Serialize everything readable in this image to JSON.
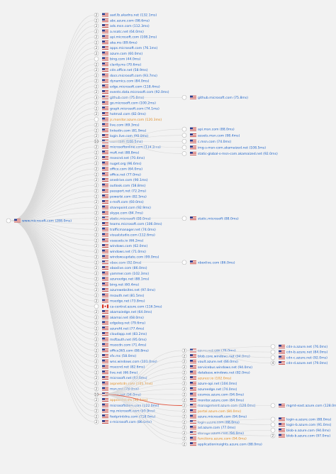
{
  "colors": {
    "background": "#f2f2f2",
    "edge": "#d8d8d8",
    "highlight_edge": "#e0533d",
    "link": "#1d63c9",
    "text": "#222222",
    "orange": "#e08a1e"
  },
  "root": {
    "label": "www.microsoft.com (288.0ms)",
    "flag": "us"
  },
  "children": [
    {
      "count": "2",
      "label": "aad.lb.akadns.net (132.1ms)",
      "flag": "us"
    },
    {
      "count": "2",
      "label": "abc.azure.com (98.6ms)",
      "flag": "us"
    },
    {
      "count": "2",
      "label": "ads.msn.com (112.3ms)",
      "flag": "us"
    },
    {
      "count": "2",
      "label": "a.nsatc.net (64.0ms)",
      "flag": "us"
    },
    {
      "count": "2",
      "label": "api.microsoft.com (108.2ms)",
      "flag": "us"
    },
    {
      "count": "2",
      "label": "aka.ms (89.6ms)",
      "flag": "us"
    },
    {
      "count": "2",
      "label": "apps.microsoft.com (76.1ms)",
      "flag": "us"
    },
    {
      "count": "2",
      "label": "azure.com (60.0ms)",
      "flag": "us"
    },
    {
      "count": "",
      "label": "bing.com (44.0ms)",
      "flag": "us"
    },
    {
      "count": "2",
      "label": "clarity.ms (70.6ms)",
      "flag": "us"
    },
    {
      "count": "2",
      "label": "cdn.office.net (58.9ms)",
      "flag": "us"
    },
    {
      "count": "2",
      "label": "docs.microsoft.com (93.7ms)",
      "flag": "us"
    },
    {
      "count": "2",
      "label": "dynamics.com (84.0ms)",
      "flag": "us"
    },
    {
      "count": "2",
      "label": "edge.microsoft.com (118.4ms)",
      "flag": "us"
    },
    {
      "count": "2",
      "label": "events.data.microsoft.com (92.0ms)",
      "flag": "us"
    },
    {
      "count": "3",
      "label": "github.com (75.8ms)",
      "flag": "us"
    },
    {
      "count": "2",
      "label": "go.microsoft.com (100.2ms)",
      "flag": "us"
    },
    {
      "count": "2",
      "label": "graph.microsoft.com (74.1ms)",
      "flag": "us"
    },
    {
      "count": "2",
      "label": "hotmail.com (82.0ms)",
      "flag": "us"
    },
    {
      "count": "",
      "label": "js.monitor.azure.com (120.3ms)",
      "flag": "us",
      "color": "orange"
    },
    {
      "count": "2",
      "label": "live.com (69.3ms)",
      "flag": "us"
    },
    {
      "count": "2",
      "label": "linkedin.com (81.9ms)",
      "flag": "us"
    },
    {
      "count": "2",
      "label": "login.live.com (98.0ms)",
      "flag": "us"
    },
    {
      "count": "10",
      "label": "msn.com (108.5ms)",
      "flag": "us"
    },
    {
      "count": "2",
      "label": "microsoftonline.com (114.2ms)",
      "flag": "us"
    },
    {
      "count": "2",
      "label": "msft.net (88.8ms)",
      "flag": "us"
    },
    {
      "count": "2",
      "label": "msecnd.net (70.4ms)",
      "flag": "us"
    },
    {
      "count": "2",
      "label": "nuget.org (96.6ms)",
      "flag": "us"
    },
    {
      "count": "2",
      "label": "office.com (64.0ms)",
      "flag": "us"
    },
    {
      "count": "2",
      "label": "office.net (77.0ms)",
      "flag": "us"
    },
    {
      "count": "2",
      "label": "onedrive.com (90.1ms)",
      "flag": "us"
    },
    {
      "count": "2",
      "label": "outlook.com (58.8ms)",
      "flag": "us"
    },
    {
      "count": "2",
      "label": "passport.net (72.2ms)",
      "flag": "us"
    },
    {
      "count": "2",
      "label": "powerbi.com (82.5ms)",
      "flag": "us"
    },
    {
      "count": "2",
      "label": "s-msft.com (60.0ms)",
      "flag": "us"
    },
    {
      "count": "2",
      "label": "sharepoint.com (92.9ms)",
      "flag": "us"
    },
    {
      "count": "2",
      "label": "skype.com (84.7ms)",
      "flag": "us"
    },
    {
      "count": "2",
      "label": "static.microsoft (88.0ms)",
      "flag": "us"
    },
    {
      "count": "2",
      "label": "teams.microsoft.com (106.0ms)",
      "flag": "us"
    },
    {
      "count": "2",
      "label": "trafficmanager.net (74.0ms)",
      "flag": "us"
    },
    {
      "count": "2",
      "label": "visualstudio.com (112.6ms)",
      "flag": "us"
    },
    {
      "count": "2",
      "label": "vsassets.io (66.2ms)",
      "flag": "us"
    },
    {
      "count": "2",
      "label": "windows.com (62.0ms)",
      "flag": "us"
    },
    {
      "count": "2",
      "label": "windows.net (71.0ms)",
      "flag": "us"
    },
    {
      "count": "2",
      "label": "windowsupdate.com (99.0ms)",
      "flag": "us"
    },
    {
      "count": "2",
      "label": "xbox.com (92.8ms)",
      "flag": "us"
    },
    {
      "count": "2",
      "label": "xboxlive.com (86.0ms)",
      "flag": "us"
    },
    {
      "count": "2",
      "label": "yammer.com (102.3ms)",
      "flag": "us"
    },
    {
      "count": "2",
      "label": "azureedge.net (88.1ms)",
      "flag": "us"
    },
    {
      "count": "2",
      "label": "bing.net (60.4ms)",
      "flag": "us"
    },
    {
      "count": "2",
      "label": "azurewebsites.net (97.0ms)",
      "flag": "us"
    },
    {
      "count": "2",
      "label": "msauth.net (81.5ms)",
      "flag": "us"
    },
    {
      "count": "2",
      "label": "msedge.net (73.8ms)",
      "flag": "us"
    },
    {
      "count": "",
      "label": "ca-central.azure.com (116.5ms)",
      "flag": "ca"
    },
    {
      "count": "2",
      "label": "akamaiedge.net (64.0ms)",
      "flag": "us"
    },
    {
      "count": "2",
      "label": "akamai.net (68.0ms)",
      "flag": "us"
    },
    {
      "count": "2",
      "label": "edgekey.net (79.6ms)",
      "flag": "us"
    },
    {
      "count": "2",
      "label": "azurefd.net (77.4ms)",
      "flag": "us"
    },
    {
      "count": "2",
      "label": "cloudapp.net (83.2ms)",
      "flag": "us"
    },
    {
      "count": "2",
      "label": "msftauth.net (95.0ms)",
      "flag": "us"
    },
    {
      "count": "2",
      "label": "msocdn.com (71.4ms)",
      "flag": "us"
    },
    {
      "count": "2",
      "label": "office365.com (88.8ms)",
      "flag": "us"
    },
    {
      "count": "2",
      "label": "sfx.ms (58.0ms)",
      "flag": "us"
    },
    {
      "count": "2",
      "label": "wns.windows.com (101.0ms)",
      "flag": "us"
    },
    {
      "count": "2",
      "label": "msecnd.net (82.6ms)",
      "flag": "us"
    },
    {
      "count": "2",
      "label": "live.net (66.0ms)",
      "flag": "us"
    },
    {
      "count": "2",
      "label": "microsoft.net (92.0ms)",
      "flag": "us"
    },
    {
      "count": "2",
      "label": "aspnetcdn.com (105.3ms)",
      "flag": "us",
      "color": "orange"
    },
    {
      "count": "2",
      "label": "msn.net (78.0ms)",
      "flag": "us"
    },
    {
      "count": "10",
      "label": "azure.net (94.0ms)",
      "flag": "us"
    },
    {
      "count": "2",
      "label": "appcenter.ms (80.1ms)",
      "flag": "us",
      "color": "orange"
    },
    {
      "count": "2",
      "label": "microsoftstore.com (122.0ms)",
      "flag": "us"
    },
    {
      "count": "2",
      "label": "mp.microsoft.com (99.9ms)",
      "flag": "us"
    },
    {
      "count": "2",
      "label": "footprintdns.com (118.0ms)",
      "flag": "us"
    },
    {
      "count": "2",
      "label": "s-microsoft.com (86.0ms)",
      "flag": "us"
    }
  ],
  "branches": [
    {
      "parent_index": 15,
      "items": [
        {
          "label": "github.microsoft.com (75.8ms)",
          "flag": "us"
        }
      ]
    },
    {
      "parent_index": 23,
      "items": [
        {
          "label": "api.msn.com (88.0ms)",
          "flag": "us"
        },
        {
          "label": "assets.msn.com (98.4ms)",
          "flag": "us"
        },
        {
          "label": "c.msn.com (74.0ms)",
          "flag": "us"
        },
        {
          "label": "img-s-msn-com.akamaized.net (108.5ms)",
          "flag": "us"
        },
        {
          "label": "static-global-s-msn-com.akamaized.net (92.0ms)",
          "flag": "us"
        }
      ]
    },
    {
      "parent_index": 37,
      "items": [
        {
          "label": "static.microsoft (88.0ms)",
          "flag": "us"
        }
      ]
    },
    {
      "parent_index": 45,
      "items": [
        {
          "label": "xboxlive.com (86.0ms)",
          "flag": "us"
        }
      ]
    },
    {
      "parent_index": 69,
      "items": [
        {
          "label": "azure.net cdn (76.0ms)",
          "flag": "us",
          "count": "3"
        },
        {
          "label": "blob.core.windows.net (94.0ms)",
          "flag": "us",
          "count": "2"
        },
        {
          "label": "vault.azure.net (66.0ms)",
          "flag": "us",
          "count": "2"
        },
        {
          "label": "servicebus.windows.net (94.0ms)",
          "flag": "us",
          "count": "2"
        },
        {
          "label": "database.windows.net (82.0ms)",
          "flag": "us",
          "count": "2"
        },
        {
          "label": "azurecr.io (102.0ms)",
          "flag": "us",
          "count": "2",
          "color": "orange"
        },
        {
          "label": "azure-api.net (104.0ms)",
          "flag": "us",
          "count": "2"
        },
        {
          "label": "azureedge.net (74.0ms)",
          "flag": "us",
          "count": "2"
        },
        {
          "label": "cosmos.azure.com (94.0ms)",
          "flag": "us",
          "count": "2"
        },
        {
          "label": "monitor.azure.com (84.0ms)",
          "flag": "us",
          "count": "2"
        },
        {
          "label": "management.azure.com (128.0ms)",
          "flag": "us",
          "count": "2",
          "highlight": true
        },
        {
          "label": "portal.azure.com (84.0ms)",
          "flag": "us",
          "count": "2",
          "color": "orange"
        },
        {
          "label": "azure.microsoft.com (94.0ms)",
          "flag": "us",
          "count": "2"
        },
        {
          "label": "login.azure.com (88.0ms)",
          "flag": "us",
          "count": "2"
        },
        {
          "label": "ad.azure.com (77.0ms)",
          "flag": "us",
          "count": "2"
        },
        {
          "label": "storage.azure.com (94.0ms)",
          "flag": "us",
          "count": "2"
        },
        {
          "label": "functions.azure.com (94.0ms)",
          "flag": "us",
          "count": "2",
          "color": "orange"
        },
        {
          "label": "applicationinsights.azure.com (88.0ms)",
          "flag": "us",
          "count": "2"
        }
      ]
    }
  ],
  "subbranches": [
    {
      "branch": 4,
      "item": 0,
      "items": [
        {
          "label": "cdn-a.azure.net (76.0ms)",
          "flag": "us",
          "count": ""
        },
        {
          "label": "cdn-b.azure.net (84.0ms)",
          "flag": "us",
          "count": ""
        },
        {
          "label": "cdn-c.azure.net (92.0ms)",
          "flag": "us",
          "count": ""
        },
        {
          "label": "cdn-d.azure.net (79.0ms)",
          "flag": "us",
          "count": "4"
        }
      ]
    },
    {
      "branch": 4,
      "item": 10,
      "items": [
        {
          "label": "mgmt-east.azure.com (128.0ms)",
          "flag": "us",
          "count": ""
        }
      ]
    },
    {
      "branch": 4,
      "item": 13,
      "items": [
        {
          "label": "login-a.azure.com (88.0ms)",
          "flag": "us",
          "count": ""
        },
        {
          "label": "login-b.azure.com (91.0ms)",
          "flag": "us",
          "count": ""
        }
      ]
    },
    {
      "branch": 4,
      "item": 15,
      "items": [
        {
          "label": "blob-a.azure.com (94.0ms)",
          "flag": "us",
          "count": ""
        },
        {
          "label": "blob-b.azure.com (97.0ms)",
          "flag": "us",
          "count": "2"
        }
      ]
    }
  ]
}
